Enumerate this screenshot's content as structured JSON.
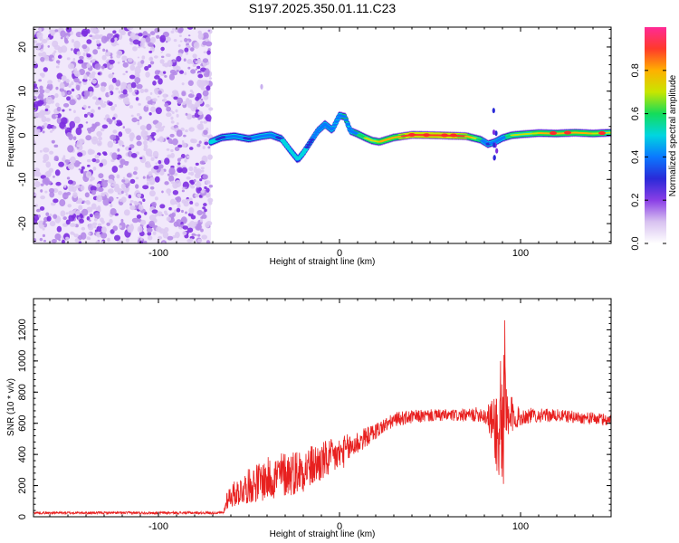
{
  "title": "S197.2025.350.01.11.C23",
  "chart_data": [
    {
      "type": "heatmap",
      "xlabel": "Height of straight line (km)",
      "ylabel": "Frequency (Hz)",
      "xlim": [
        -169,
        150
      ],
      "ylim": [
        -24.5,
        24.5
      ],
      "xticks": [
        -100,
        0,
        100
      ],
      "yticks": [
        -20,
        -10,
        0,
        10,
        20
      ],
      "colorbar": {
        "label": "Normalized spectral amplitude",
        "range": [
          0,
          1
        ],
        "ticks": [
          0.0,
          0.2,
          0.4,
          0.6,
          0.8
        ],
        "colormap": [
          "#ffffff",
          "#d8c2f0",
          "#8a3ee6",
          "#2a2ad8",
          "#0a78ff",
          "#00d6e0",
          "#14dc5a",
          "#c8e600",
          "#ffb000",
          "#ff3a2a",
          "#ff2a96"
        ]
      },
      "noise_region_xrange": [
        -169,
        -71
      ],
      "ridge": {
        "name": "dominant frequency ridge",
        "x": [
          -71,
          -65,
          -58,
          -50,
          -43,
          -38,
          -32,
          -27,
          -23,
          -20,
          -16,
          -12,
          -8,
          -4,
          0,
          3,
          6,
          10,
          14,
          18,
          22,
          26,
          30,
          40,
          55,
          70,
          78,
          82,
          86,
          90,
          95,
          100,
          110,
          120,
          130,
          140,
          150
        ],
        "y": [
          -1.5,
          -0.5,
          -0.2,
          -0.8,
          -0.2,
          0.1,
          -0.8,
          -3.5,
          -5.5,
          -4,
          -1.5,
          1.0,
          2.5,
          1.2,
          4.5,
          4.2,
          1.0,
          0.3,
          -0.5,
          -1.2,
          -1.5,
          -1.0,
          -0.5,
          0.1,
          0.0,
          -0.2,
          -1.0,
          -2.0,
          -1.5,
          -0.6,
          0.0,
          0.2,
          0.5,
          0.4,
          0.6,
          0.4,
          0.6
        ],
        "amplitude": [
          0.35,
          0.45,
          0.5,
          0.45,
          0.5,
          0.55,
          0.4,
          0.3,
          0.3,
          0.35,
          0.45,
          0.5,
          0.55,
          0.5,
          0.55,
          0.6,
          0.55,
          0.6,
          0.65,
          0.7,
          0.75,
          0.8,
          0.8,
          0.9,
          0.9,
          0.85,
          0.6,
          0.45,
          0.5,
          0.55,
          0.65,
          0.7,
          0.75,
          0.75,
          0.8,
          0.75,
          0.7
        ]
      }
    },
    {
      "type": "line",
      "xlabel": "Height of straight line (km)",
      "ylabel": "SNR (10 * v/v)",
      "xlim": [
        -169,
        150
      ],
      "ylim": [
        0,
        1400
      ],
      "xticks": [
        -100,
        0,
        100
      ],
      "yticks": [
        0,
        200,
        400,
        600,
        800,
        1000,
        1200
      ],
      "series": [
        {
          "color": "#e8201f",
          "envelope": {
            "x": [
              -169,
              -150,
              -130,
              -110,
              -90,
              -75,
              -64,
              -62,
              -56,
              -48,
              -40,
              -32,
              -24,
              -16,
              -8,
              0,
              8,
              16,
              24,
              32,
              40,
              50,
              60,
              70,
              78,
              82,
              85,
              87,
              88,
              89,
              90,
              91,
              92,
              93,
              95,
              97,
              100,
              105,
              110,
              120,
              130,
              140,
              150
            ],
            "mean": [
              25,
              25,
              25,
              25,
              25,
              25,
              25,
              120,
              160,
              210,
              240,
              270,
              290,
              320,
              360,
              400,
              460,
              520,
              580,
              630,
              640,
              650,
              650,
              650,
              660,
              640,
              600,
              560,
              380,
              700,
              500,
              820,
              620,
              560,
              650,
              640,
              640,
              650,
              650,
              650,
              640,
              630,
              620
            ],
            "spread": [
              8,
              8,
              8,
              8,
              8,
              8,
              8,
              70,
              90,
              120,
              140,
              150,
              150,
              140,
              130,
              110,
              90,
              60,
              50,
              45,
              45,
              40,
              40,
              40,
              50,
              80,
              180,
              300,
              340,
              700,
              420,
              560,
              350,
              240,
              140,
              80,
              60,
              50,
              45,
              40,
              40,
              40,
              40
            ]
          }
        }
      ]
    }
  ]
}
